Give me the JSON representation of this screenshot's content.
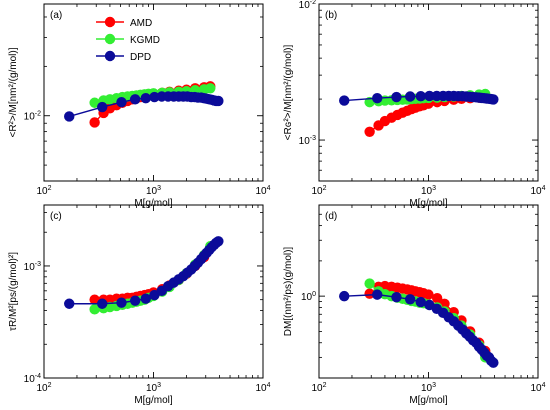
{
  "colors": {
    "AMD": "#ff0000",
    "KGMD": "#33ee33",
    "DPD": "#0b0b99"
  },
  "legend": [
    {
      "name": "AMD",
      "label": "AMD"
    },
    {
      "name": "KGMD",
      "label": "KGMD"
    },
    {
      "name": "DPD",
      "label": "DPD"
    }
  ],
  "chart_data": [
    {
      "type": "line",
      "panel": "(a)",
      "xlabel": "M[g/mol]",
      "ylabel": "<R²>/M[nm²/(g/mol)]",
      "xscale": "log",
      "yscale": "log",
      "xlim": [
        100,
        10000
      ],
      "ylim": [
        0.004,
        0.048
      ],
      "xticks": [
        {
          "v": 100,
          "b": "10",
          "e": "2"
        },
        {
          "v": 1000,
          "b": "10",
          "e": "3"
        },
        {
          "v": 10000,
          "b": "10",
          "e": "4"
        }
      ],
      "yticks": [
        {
          "v": 0.01,
          "b": "10",
          "e": "-2"
        }
      ],
      "legend_position": "top-left",
      "series": [
        {
          "name": "AMD",
          "x": [
            290,
            350,
            400,
            460,
            520,
            580,
            640,
            700,
            760,
            830,
            900,
            1000,
            1200,
            1400,
            1700,
            2000,
            2400,
            2900,
            3300
          ],
          "y": [
            0.0091,
            0.0104,
            0.0111,
            0.0116,
            0.012,
            0.0123,
            0.0126,
            0.0128,
            0.013,
            0.0132,
            0.0134,
            0.0136,
            0.0138,
            0.014,
            0.0142,
            0.0144,
            0.0147,
            0.0149,
            0.0151
          ]
        },
        {
          "name": "KGMD",
          "x": [
            290,
            350,
            400,
            460,
            520,
            580,
            640,
            700,
            760,
            830,
            900,
            1000,
            1200,
            1400,
            1700,
            2000,
            2400,
            2900,
            3300
          ],
          "y": [
            0.012,
            0.0124,
            0.0126,
            0.0128,
            0.013,
            0.0131,
            0.0132,
            0.0133,
            0.0134,
            0.0135,
            0.0136,
            0.0137,
            0.0138,
            0.0139,
            0.014,
            0.0141,
            0.0143,
            0.0145,
            0.0147
          ]
        },
        {
          "name": "DPD",
          "x": [
            170,
            340,
            510,
            680,
            850,
            1020,
            1190,
            1360,
            1530,
            1700,
            1870,
            2040,
            2210,
            2380,
            2550,
            2720,
            2890,
            3060,
            3230,
            3400,
            3570,
            3740,
            3910
          ],
          "y": [
            0.0099,
            0.0113,
            0.0121,
            0.0126,
            0.0128,
            0.013,
            0.0131,
            0.0131,
            0.0131,
            0.0131,
            0.0131,
            0.0131,
            0.013,
            0.013,
            0.0129,
            0.0129,
            0.0128,
            0.0127,
            0.0126,
            0.0125,
            0.0124,
            0.0123,
            0.0123
          ]
        }
      ]
    },
    {
      "type": "line",
      "panel": "(b)",
      "xlabel": "M[g/mol]",
      "ylabel": "<Rɢ²>/M[nm²/(g/mol)]",
      "xscale": "log",
      "yscale": "log",
      "xlim": [
        100,
        10000
      ],
      "ylim": [
        0.0005,
        0.01
      ],
      "xticks": [
        {
          "v": 100,
          "b": "10",
          "e": "2"
        },
        {
          "v": 1000,
          "b": "10",
          "e": "3"
        },
        {
          "v": 10000,
          "b": "10",
          "e": "4"
        }
      ],
      "yticks": [
        {
          "v": 0.001,
          "b": "10",
          "e": "-3"
        },
        {
          "v": 0.01,
          "b": "10",
          "e": "-2"
        }
      ],
      "series": [
        {
          "name": "AMD",
          "x": [
            290,
            350,
            400,
            460,
            520,
            580,
            640,
            700,
            760,
            830,
            900,
            1000,
            1200,
            1400,
            1700,
            2000,
            2400,
            2900,
            3300
          ],
          "y": [
            0.00115,
            0.00128,
            0.00138,
            0.00146,
            0.00153,
            0.00159,
            0.00164,
            0.00169,
            0.00173,
            0.00177,
            0.0018,
            0.00185,
            0.0019,
            0.00194,
            0.00198,
            0.00201,
            0.00203,
            0.00205,
            0.00206
          ]
        },
        {
          "name": "KGMD",
          "x": [
            290,
            350,
            400,
            460,
            520,
            580,
            640,
            700,
            760,
            830,
            900,
            1000,
            1200,
            1400,
            1700,
            2000,
            2400,
            2900,
            3300
          ],
          "y": [
            0.0019,
            0.00193,
            0.00195,
            0.00196,
            0.00197,
            0.00198,
            0.00199,
            0.002,
            0.00201,
            0.00202,
            0.00203,
            0.00204,
            0.00205,
            0.00207,
            0.00209,
            0.00211,
            0.00213,
            0.00216,
            0.00218
          ]
        },
        {
          "name": "DPD",
          "x": [
            170,
            340,
            510,
            680,
            850,
            1020,
            1190,
            1360,
            1530,
            1700,
            1870,
            2040,
            2210,
            2380,
            2550,
            2720,
            2890,
            3060,
            3230,
            3400,
            3570,
            3740,
            3910
          ],
          "y": [
            0.00195,
            0.00203,
            0.00207,
            0.00209,
            0.0021,
            0.00211,
            0.00211,
            0.00211,
            0.00211,
            0.00211,
            0.0021,
            0.0021,
            0.00209,
            0.00208,
            0.00207,
            0.00206,
            0.00205,
            0.00204,
            0.00203,
            0.00202,
            0.00201,
            0.002,
            0.00199
          ]
        }
      ]
    },
    {
      "type": "line",
      "panel": "(c)",
      "xlabel": "M[g/mol]",
      "ylabel": "τR/M²[ps/(g/mol)²]",
      "xscale": "log",
      "yscale": "log",
      "xlim": [
        100,
        10000
      ],
      "ylim": [
        0.0001,
        0.0035
      ],
      "xticks": [
        {
          "v": 100,
          "b": "10",
          "e": "2"
        },
        {
          "v": 1000,
          "b": "10",
          "e": "3"
        },
        {
          "v": 10000,
          "b": "10",
          "e": "4"
        }
      ],
      "yticks": [
        {
          "v": 0.0001,
          "b": "10",
          "e": "-4"
        },
        {
          "v": 0.001,
          "b": "10",
          "e": "-3"
        }
      ],
      "series": [
        {
          "name": "AMD",
          "x": [
            290,
            350,
            400,
            460,
            520,
            580,
            640,
            700,
            760,
            830,
            900,
            1000,
            1200,
            1400,
            1700,
            2000,
            2400,
            2900,
            3300
          ],
          "y": [
            0.0005,
            0.0005,
            0.0005,
            0.00051,
            0.00051,
            0.00052,
            0.00052,
            0.00053,
            0.00054,
            0.00055,
            0.00056,
            0.00058,
            0.00062,
            0.00067,
            0.00075,
            0.00085,
            0.001,
            0.0012,
            0.00145
          ]
        },
        {
          "name": "KGMD",
          "x": [
            290,
            350,
            400,
            460,
            520,
            580,
            640,
            700,
            760,
            830,
            900,
            1000,
            1200,
            1400,
            1700,
            2000,
            2400,
            2900,
            3300
          ],
          "y": [
            0.00041,
            0.00042,
            0.00043,
            0.00044,
            0.00045,
            0.00046,
            0.00047,
            0.00048,
            0.00049,
            0.0005,
            0.00052,
            0.00054,
            0.00059,
            0.00065,
            0.00075,
            0.00086,
            0.00103,
            0.00125,
            0.0015
          ]
        },
        {
          "name": "DPD",
          "x": [
            170,
            340,
            510,
            680,
            850,
            1020,
            1190,
            1360,
            1530,
            1700,
            1870,
            2040,
            2210,
            2380,
            2550,
            2720,
            2890,
            3060,
            3230,
            3400,
            3570,
            3740,
            3910
          ],
          "y": [
            0.00046,
            0.00046,
            0.00047,
            0.00049,
            0.00051,
            0.00055,
            0.0006,
            0.00066,
            0.00071,
            0.00076,
            0.00081,
            0.00087,
            0.00093,
            0.001,
            0.00107,
            0.00115,
            0.00123,
            0.00131,
            0.00139,
            0.00147,
            0.00154,
            0.00161,
            0.00166
          ]
        }
      ]
    },
    {
      "type": "line",
      "panel": "(d)",
      "xlabel": "M[g/mol]",
      "ylabel": "DM[(nm²/ps)(g/mol)]",
      "xscale": "log",
      "yscale": "log",
      "xlim": [
        100,
        10000
      ],
      "ylim": [
        0.2,
        6
      ],
      "xticks": [
        {
          "v": 100,
          "b": "10",
          "e": "2"
        },
        {
          "v": 1000,
          "b": "10",
          "e": "3"
        },
        {
          "v": 10000,
          "b": "10",
          "e": "4"
        }
      ],
      "yticks": [
        {
          "v": 1,
          "b": "10",
          "e": "0"
        }
      ],
      "series": [
        {
          "name": "AMD",
          "x": [
            290,
            350,
            400,
            460,
            520,
            580,
            640,
            700,
            760,
            830,
            900,
            1000,
            1200,
            1400,
            1700,
            2000,
            2400,
            2900,
            3300
          ],
          "y": [
            1.05,
            1.2,
            1.22,
            1.2,
            1.18,
            1.16,
            1.14,
            1.12,
            1.1,
            1.08,
            1.06,
            1.03,
            0.96,
            0.86,
            0.73,
            0.62,
            0.5,
            0.4,
            0.34
          ]
        },
        {
          "name": "KGMD",
          "x": [
            290,
            350,
            400,
            460,
            520,
            580,
            640,
            700,
            760,
            830,
            900,
            1000,
            1200,
            1400,
            1700,
            2000,
            2400,
            2900,
            3300
          ],
          "y": [
            1.28,
            1.1,
            1.04,
            1.0,
            0.97,
            0.95,
            0.93,
            0.91,
            0.9,
            0.88,
            0.87,
            0.85,
            0.8,
            0.74,
            0.65,
            0.56,
            0.47,
            0.38,
            0.3
          ]
        },
        {
          "name": "DPD",
          "x": [
            170,
            340,
            510,
            680,
            850,
            1020,
            1190,
            1360,
            1530,
            1700,
            1870,
            2040,
            2210,
            2380,
            2550,
            2720,
            2890,
            3060,
            3230,
            3400,
            3570,
            3740,
            3910
          ],
          "y": [
            1.0,
            1.03,
            0.98,
            0.94,
            0.89,
            0.84,
            0.78,
            0.72,
            0.66,
            0.61,
            0.56,
            0.52,
            0.48,
            0.45,
            0.42,
            0.4,
            0.37,
            0.35,
            0.33,
            0.31,
            0.3,
            0.28,
            0.27
          ]
        }
      ]
    }
  ]
}
